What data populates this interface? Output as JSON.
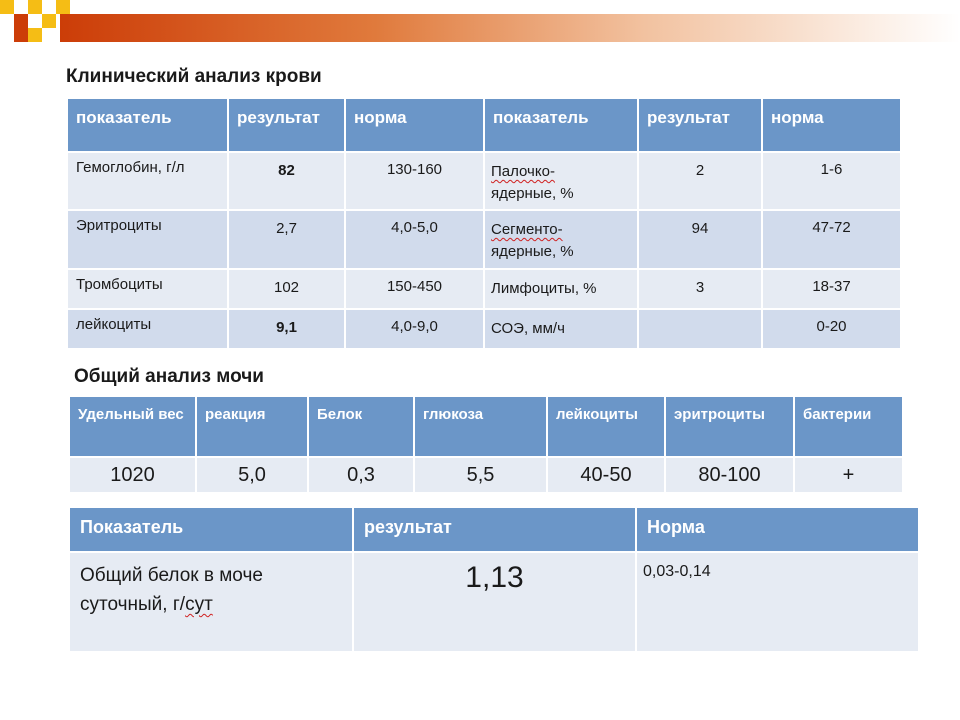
{
  "colors": {
    "header_blue": "#6b96c8",
    "row_light": "#e6ebf3",
    "row_mid": "#d1dbec",
    "accent_orange": "#cc3d08",
    "accent_yellow": "#f5bd15"
  },
  "blood": {
    "title": "Клинический анализ крови",
    "headers": [
      "показатель",
      "результат",
      "норма",
      "показатель",
      "результат",
      "норма"
    ],
    "rows": [
      {
        "indicator_1": "Гемоглобин, г/л",
        "result_1": "82",
        "norm_1": "130-160",
        "indicator_2_word": "Палочко-",
        "indicator_2_rest": "ядерные, %",
        "result_2": "2",
        "norm_2": "1-6"
      },
      {
        "indicator_1": "Эритроциты",
        "result_1": "2,7",
        "norm_1": "4,0-5,0",
        "indicator_2_word": "Сегменто-",
        "indicator_2_rest": "ядерные, %",
        "result_2": "94",
        "norm_2": "47-72"
      },
      {
        "indicator_1": "Тромбоциты",
        "result_1": "102",
        "norm_1": "150-450",
        "indicator_2": "Лимфоциты, %",
        "result_2": "3",
        "norm_2": "18-37"
      },
      {
        "indicator_1": "лейкоциты",
        "result_1": "9,1",
        "norm_1": "4,0-9,0",
        "indicator_2": "СОЭ, мм/ч",
        "result_2": "",
        "norm_2": "0-20"
      }
    ]
  },
  "urine": {
    "title": "Общий анализ мочи",
    "headers": [
      "Удельный вес",
      "реакция",
      "Белок",
      "глюкоза",
      "лейкоциты",
      "эритроциты",
      "бактерии"
    ],
    "values": [
      "1020",
      "5,0",
      "0,3",
      "5,5",
      "40-50",
      "80-100",
      "+"
    ]
  },
  "protein": {
    "headers": [
      "Показатель",
      "результат",
      "Норма"
    ],
    "indicator_line1": "Общий белок в моче",
    "indicator_line2_prefix": "суточный, г/",
    "indicator_line2_unit": "сут",
    "result": "1,13",
    "norm": "0,03-0,14"
  }
}
